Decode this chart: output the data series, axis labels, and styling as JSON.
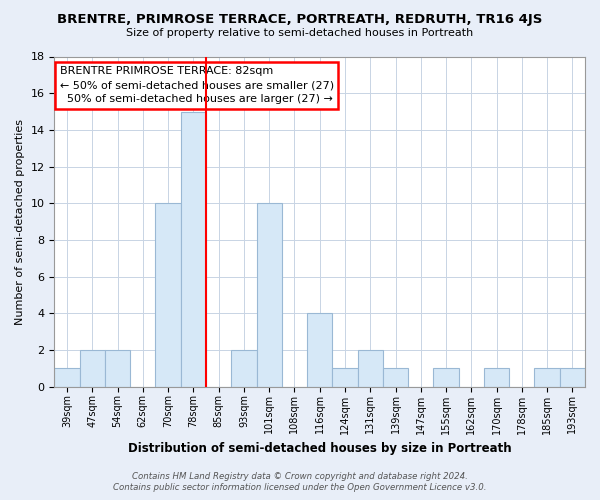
{
  "title": "BRENTRE, PRIMROSE TERRACE, PORTREATH, REDRUTH, TR16 4JS",
  "subtitle": "Size of property relative to semi-detached houses in Portreath",
  "xlabel": "Distribution of semi-detached houses by size in Portreath",
  "ylabel": "Number of semi-detached properties",
  "bin_labels": [
    "39sqm",
    "47sqm",
    "54sqm",
    "62sqm",
    "70sqm",
    "78sqm",
    "85sqm",
    "93sqm",
    "101sqm",
    "108sqm",
    "116sqm",
    "124sqm",
    "131sqm",
    "139sqm",
    "147sqm",
    "155sqm",
    "162sqm",
    "170sqm",
    "178sqm",
    "185sqm",
    "193sqm"
  ],
  "bar_heights": [
    1,
    2,
    2,
    0,
    10,
    15,
    0,
    2,
    10,
    0,
    4,
    1,
    2,
    1,
    0,
    1,
    0,
    1,
    0,
    1,
    1
  ],
  "bar_color": "#d6e8f7",
  "bar_edgecolor": "#9ab8d4",
  "ref_line_index": 5.5,
  "ylim": [
    0,
    18
  ],
  "yticks": [
    0,
    2,
    4,
    6,
    8,
    10,
    12,
    14,
    16,
    18
  ],
  "annotation_title": "BRENTRE PRIMROSE TERRACE: 82sqm",
  "annotation_line1": "← 50% of semi-detached houses are smaller (27)",
  "annotation_line2": "  50% of semi-detached houses are larger (27) →",
  "footer1": "Contains HM Land Registry data © Crown copyright and database right 2024.",
  "footer2": "Contains public sector information licensed under the Open Government Licence v3.0.",
  "bg_color": "#e8eef8",
  "plot_bg_color": "#ffffff",
  "grid_color": "#c8d4e4"
}
